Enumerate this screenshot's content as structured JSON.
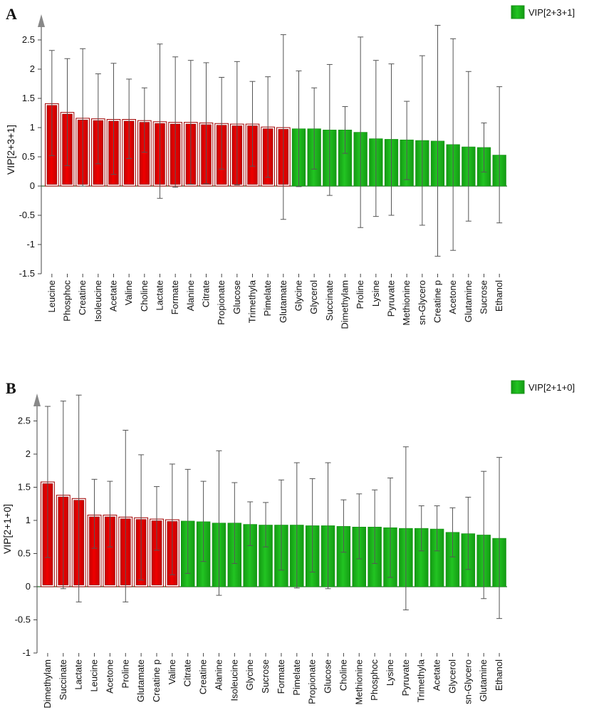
{
  "colors": {
    "important": "#ee0000",
    "important_edge": "#a00000",
    "other": "#22c422",
    "other_edge": "#169016",
    "errorbar": "#555555",
    "axis": "#444444"
  },
  "chart_data": [
    {
      "panel": "A",
      "type": "bar",
      "ylabel": "VIP[2+3+1]",
      "legend": "VIP[2+3+1]",
      "ylim": [
        -1.5,
        2.8
      ],
      "yticks": [
        -1.5,
        -1,
        -0.5,
        0,
        0.5,
        1,
        1.5,
        2,
        2.5
      ],
      "ytick_labels": [
        "-1.5",
        "-1",
        "-0.5",
        "0",
        "0.5",
        "1",
        "1.5",
        "2",
        "2.5"
      ],
      "categories": [
        "Leucine",
        "Phosphoc",
        "Creatine",
        "Isoleucine",
        "Acetate",
        "Valine",
        "Choline",
        "Lactate",
        "Formate",
        "Alanine",
        "Citrate",
        "Propionate",
        "Glucose",
        "Trimethyla",
        "Pimelate",
        "Glutamate",
        "Glycine",
        "Glycerol",
        "Succinate",
        "Dimethylam",
        "Proline",
        "Lysine",
        "Pyruvate",
        "Methionine",
        "sn-Glycero",
        "Creatine p",
        "Acetone",
        "Glutamine",
        "Sucrose",
        "Ethanol"
      ],
      "values": [
        1.41,
        1.26,
        1.16,
        1.15,
        1.14,
        1.14,
        1.12,
        1.1,
        1.09,
        1.09,
        1.08,
        1.07,
        1.06,
        1.06,
        1.01,
        1.0,
        0.98,
        0.98,
        0.96,
        0.96,
        0.92,
        0.81,
        0.8,
        0.79,
        0.78,
        0.77,
        0.71,
        0.67,
        0.66,
        0.53
      ],
      "err_low": [
        0.52,
        0.35,
        0.0,
        0.38,
        0.2,
        0.47,
        0.58,
        -0.21,
        -0.02,
        0.03,
        0.04,
        0.29,
        0.02,
        0.34,
        0.15,
        -0.57,
        -0.01,
        0.29,
        -0.16,
        0.56,
        -0.71,
        -0.52,
        -0.5,
        0.11,
        -0.67,
        -1.2,
        -1.1,
        -0.6,
        0.24,
        -0.63
      ],
      "err_high": [
        2.32,
        2.18,
        2.35,
        1.92,
        2.1,
        1.83,
        1.68,
        2.43,
        2.21,
        2.15,
        2.11,
        1.86,
        2.13,
        1.79,
        1.87,
        2.59,
        1.97,
        1.68,
        2.08,
        1.36,
        2.55,
        2.15,
        2.09,
        1.45,
        2.23,
        2.75,
        2.52,
        1.96,
        1.08,
        1.7
      ],
      "highlighted_count": 16
    },
    {
      "panel": "B",
      "type": "bar",
      "ylabel": "VIP[2+1+0]",
      "legend": "VIP[2+1+0]",
      "ylim": [
        -1,
        2.85
      ],
      "yticks": [
        -1,
        -0.5,
        0,
        0.5,
        1,
        1.5,
        2,
        2.5
      ],
      "ytick_labels": [
        "-1",
        "-0.5",
        "0",
        "0.5",
        "1",
        "1.5",
        "2",
        "2.5"
      ],
      "categories": [
        "Dimethylam",
        "Succinate",
        "Lactate",
        "Leucine",
        "Acetone",
        "Proline",
        "Glutamate",
        "Creatine p",
        "Valine",
        "Citrate",
        "Creatine",
        "Alanine",
        "Isoleucine",
        "Glycine",
        "Sucrose",
        "Formate",
        "Pimelate",
        "Propionate",
        "Glucose",
        "Choline",
        "Methionine",
        "Phosphoc",
        "Lysine",
        "Pyruvate",
        "Trimethyla",
        "Acetate",
        "Glycerol",
        "sn-Glycero",
        "Glutamine",
        "Ethanol"
      ],
      "values": [
        1.58,
        1.38,
        1.33,
        1.08,
        1.08,
        1.05,
        1.04,
        1.02,
        1.01,
        0.99,
        0.98,
        0.96,
        0.96,
        0.94,
        0.93,
        0.93,
        0.93,
        0.92,
        0.92,
        0.91,
        0.9,
        0.9,
        0.89,
        0.88,
        0.88,
        0.87,
        0.82,
        0.8,
        0.78,
        0.73
      ],
      "err_low": [
        0.44,
        -0.03,
        -0.23,
        0.58,
        0.6,
        -0.23,
        0.1,
        0.55,
        0.18,
        0.2,
        0.38,
        -0.13,
        0.35,
        0.62,
        0.6,
        0.25,
        -0.02,
        0.22,
        -0.03,
        0.52,
        0.42,
        0.35,
        0.14,
        -0.35,
        0.54,
        0.54,
        0.45,
        0.26,
        -0.18,
        -0.48
      ],
      "err_high": [
        2.72,
        2.8,
        2.89,
        1.62,
        1.59,
        2.36,
        1.99,
        1.51,
        1.85,
        1.77,
        1.59,
        2.05,
        1.57,
        1.28,
        1.27,
        1.61,
        1.87,
        1.63,
        1.87,
        1.31,
        1.4,
        1.46,
        1.64,
        2.11,
        1.22,
        1.22,
        1.19,
        1.35,
        1.74,
        1.95
      ],
      "highlighted_count": 9
    }
  ]
}
